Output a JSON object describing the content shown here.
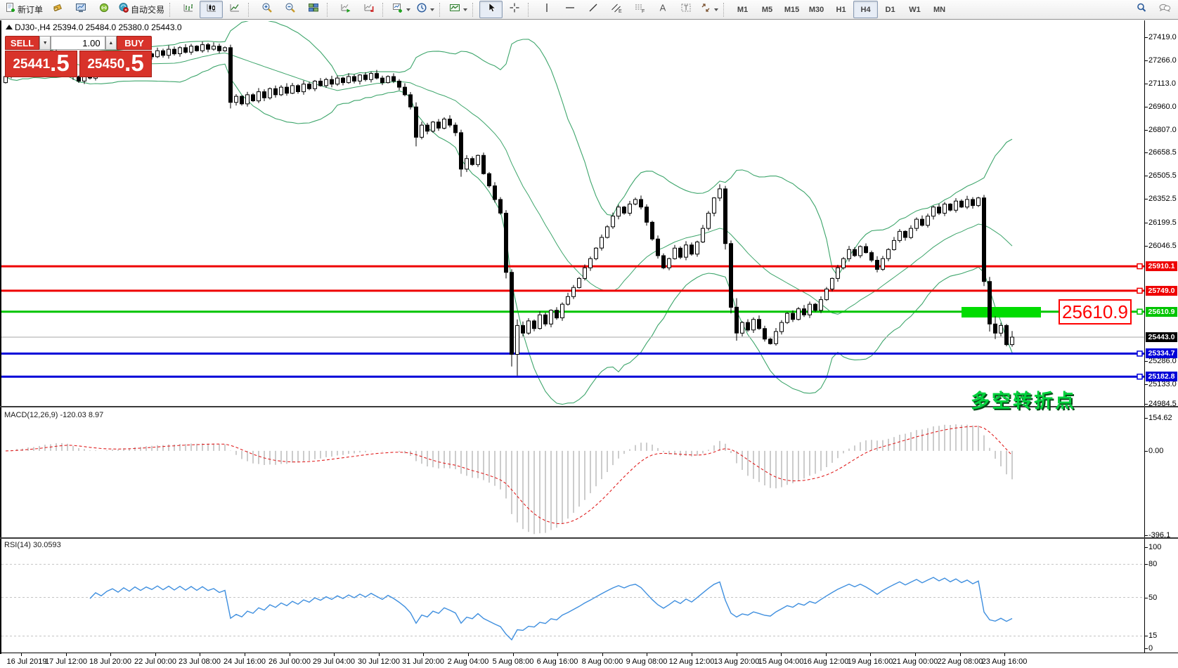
{
  "toolbar": {
    "new_order": "新订单",
    "autotrading": "自动交易",
    "timeframes": [
      "M1",
      "M5",
      "M15",
      "M30",
      "H1",
      "H4",
      "D1",
      "W1",
      "MN"
    ],
    "active_timeframe": "H4",
    "glyphs": {
      "text_tool": "A",
      "label_tool": "T",
      "channel_suffix": "E",
      "fibo_suffix": "F"
    }
  },
  "chart_header": {
    "symbol_period": "DJ30-,H4",
    "ohlc": "25394.0 25484.0 25380.0 25443.0"
  },
  "trade_panel": {
    "sell_label": "SELL",
    "buy_label": "BUY",
    "volume": "1.00",
    "sell_price_int": "25441",
    "sell_price_dec": ".5",
    "buy_price_int": "25450",
    "buy_price_dec": ".5"
  },
  "annotation": {
    "text": "多空转折点"
  },
  "callout": {
    "text": "25610.9"
  },
  "macd_panel": {
    "label": "MACD(12,26,9) -120.03 8.97",
    "ticks": [
      "154.62",
      "0.00",
      "-396.1"
    ]
  },
  "rsi_panel": {
    "label": "RSI(14) 30.0593",
    "ticks": [
      "100",
      "80",
      "50",
      "15",
      "0"
    ]
  },
  "colors": {
    "bull": "#ffffff",
    "bear": "#000000",
    "wick": "#000000",
    "bollinger": "#3da56b",
    "macd_hist": "#b6b6b6",
    "macd_signal": "#e02020",
    "rsi_line": "#3f8fdf",
    "rsi_levels": "#c4c4c4",
    "level_red": "#ee0000",
    "level_green": "#00c400",
    "level_blue": "#0000d8",
    "current_line": "#b9b9b9",
    "current_tag_bg": "#000000",
    "highlight_green": "#00dc00"
  },
  "chart_data": {
    "type": "candlestick",
    "symbol": "DJ30-",
    "timeframe": "H4",
    "last_ohlc": {
      "open": 25394.0,
      "high": 25484.0,
      "low": 25380.0,
      "close": 25443.0
    },
    "price_axis_ticks": [
      "27419.0",
      "27266.0",
      "27113.0",
      "26960.0",
      "26807.0",
      "26658.5",
      "26505.5",
      "26352.5",
      "26199.5",
      "26046.5",
      "25286.0",
      "25133.0",
      "24984.5"
    ],
    "time_labels": [
      "16 Jul 2019",
      "17 Jul 12:00",
      "18 Jul 20:00",
      "22 Jul 00:00",
      "23 Jul 08:00",
      "24 Jul 16:00",
      "26 Jul 00:00",
      "29 Jul 04:00",
      "30 Jul 12:00",
      "31 Jul 20:00",
      "2 Aug 04:00",
      "5 Aug 08:00",
      "6 Aug 16:00",
      "8 Aug 00:00",
      "9 Aug 08:00",
      "12 Aug 12:00",
      "13 Aug 20:00",
      "15 Aug 04:00",
      "16 Aug 12:00",
      "19 Aug 16:00",
      "21 Aug 00:00",
      "22 Aug 08:00",
      "23 Aug 16:00"
    ],
    "levels": [
      {
        "price": 25910.1,
        "label": "25910.1",
        "color": "red"
      },
      {
        "price": 25749.0,
        "label": "25749.0",
        "color": "red"
      },
      {
        "price": 25610.9,
        "label": "25610.9",
        "color": "green",
        "highlight": true
      },
      {
        "price": 25334.7,
        "label": "25334.7",
        "color": "blue"
      },
      {
        "price": 25182.8,
        "label": "25182.8",
        "color": "blue"
      }
    ],
    "current_price": {
      "value": 25443.0,
      "label": "25443.0"
    },
    "bollinger": {
      "period": 20,
      "deviation": 2
    },
    "macd": {
      "fast": 12,
      "slow": 26,
      "signal": 9,
      "value": -120.03,
      "signal_value": 8.97
    },
    "rsi": {
      "period": 14,
      "value": 30.0593,
      "levels": [
        80,
        50,
        15
      ]
    },
    "closes": [
      27160,
      27200,
      27240,
      27210,
      27260,
      27230,
      27280,
      27310,
      27280,
      27320,
      27290,
      27250,
      27160,
      27130,
      27180,
      27150,
      27210,
      27180,
      27230,
      27260,
      27230,
      27280,
      27250,
      27300,
      27270,
      27310,
      27290,
      27330,
      27300,
      27340,
      27310,
      27350,
      27320,
      27360,
      27330,
      27370,
      27340,
      27360,
      27330,
      27350,
      26990,
      27030,
      26980,
      27040,
      27000,
      27060,
      27020,
      27080,
      27040,
      27090,
      27050,
      27100,
      27060,
      27110,
      27080,
      27130,
      27100,
      27140,
      27110,
      27150,
      27120,
      27160,
      27130,
      27170,
      27140,
      27180,
      27150,
      27120,
      27160,
      27130,
      27090,
      27040,
      26960,
      26760,
      26840,
      26800,
      26860,
      26820,
      26880,
      26840,
      26790,
      26550,
      26620,
      26580,
      26640,
      26520,
      26440,
      26350,
      26260,
      25870,
      25330,
      25520,
      25470,
      25550,
      25500,
      25590,
      25530,
      25620,
      25570,
      25660,
      25710,
      25770,
      25830,
      25900,
      25960,
      26030,
      26100,
      26170,
      26240,
      26300,
      26260,
      26320,
      26350,
      26300,
      26200,
      26090,
      25980,
      25900,
      25960,
      26030,
      25970,
      26050,
      25990,
      26070,
      26160,
      26260,
      26360,
      26420,
      26060,
      25640,
      25470,
      25540,
      25490,
      25560,
      25500,
      25430,
      25400,
      25480,
      25540,
      25600,
      25560,
      25630,
      25590,
      25660,
      25620,
      25690,
      25760,
      25830,
      25900,
      25960,
      26020,
      25980,
      26040,
      26000,
      25950,
      25890,
      25960,
      26020,
      26080,
      26140,
      26100,
      26160,
      26220,
      26180,
      26240,
      26300,
      26260,
      26320,
      26280,
      26340,
      26300,
      26350,
      26310,
      26360,
      25810,
      25530,
      25470,
      25520,
      25394,
      25443
    ],
    "key_candles": {
      "40": [
        27350,
        27370,
        26950,
        26990
      ],
      "73": [
        26960,
        26990,
        26700,
        26760
      ],
      "81": [
        26790,
        26810,
        26500,
        26550
      ],
      "89": [
        26260,
        26280,
        25830,
        25870
      ],
      "90": [
        25870,
        25890,
        25250,
        25330
      ],
      "91": [
        25330,
        25560,
        25190,
        25520
      ],
      "127": [
        26360,
        26450,
        26340,
        26420
      ],
      "128": [
        26420,
        26440,
        26020,
        26060
      ],
      "129": [
        26060,
        26080,
        25600,
        25640
      ],
      "130": [
        25640,
        25700,
        25420,
        25470
      ],
      "174": [
        26360,
        26380,
        25780,
        25810
      ],
      "175": [
        25810,
        25840,
        25480,
        25530
      ],
      "176": [
        25530,
        25580,
        25430,
        25470
      ],
      "179": [
        25394,
        25484,
        25380,
        25443
      ]
    }
  }
}
